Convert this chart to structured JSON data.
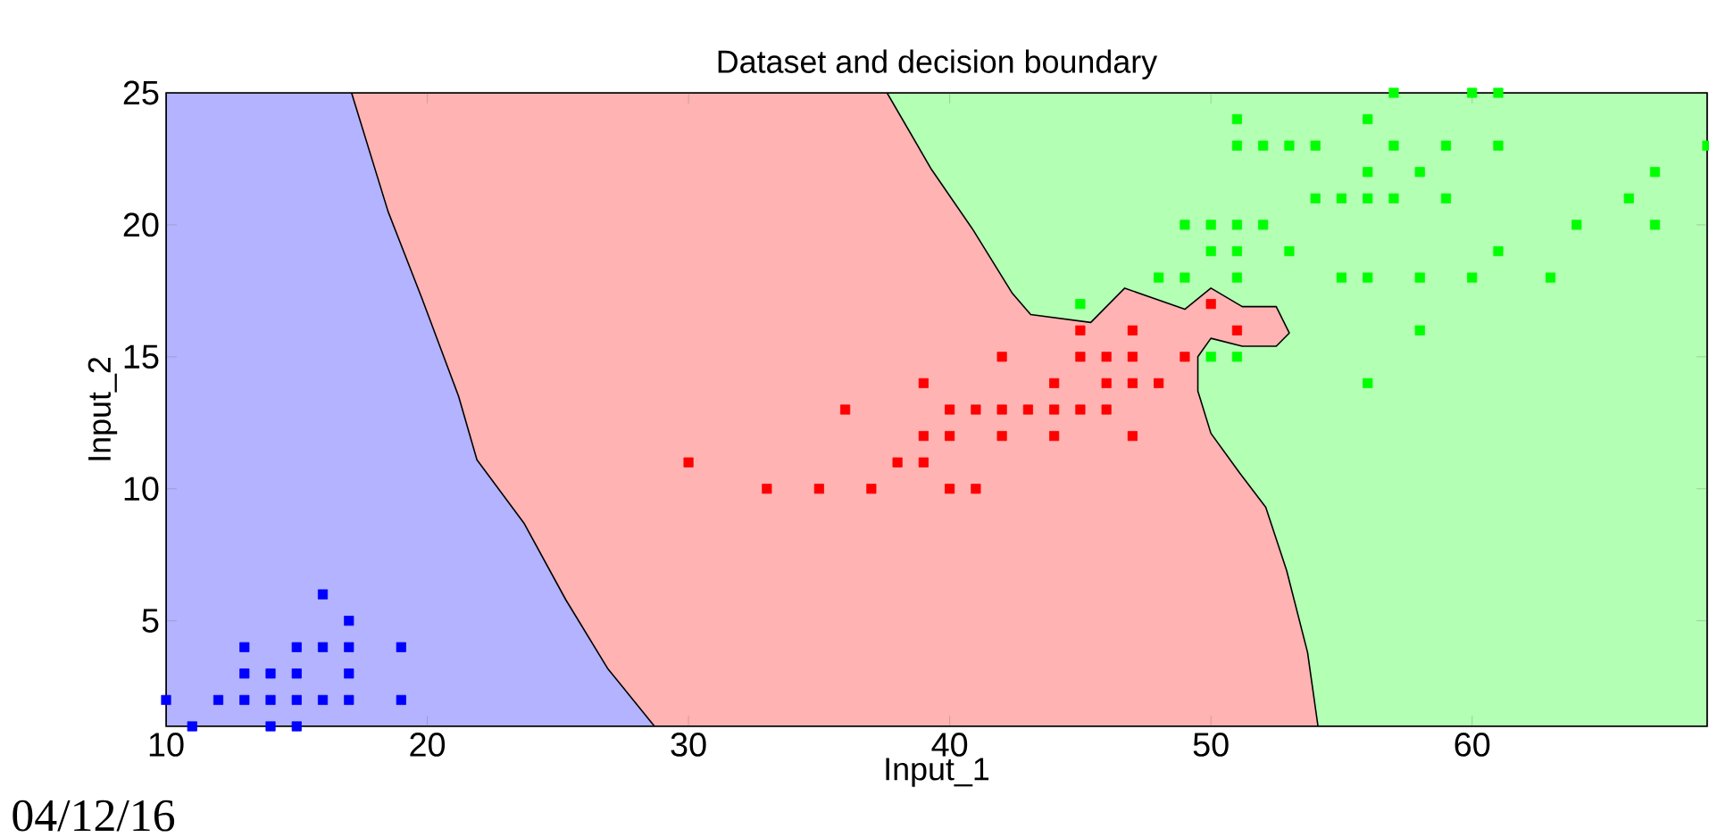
{
  "chart_data": {
    "type": "scatter",
    "title": "Dataset and decision boundary",
    "xlabel": "Input_1",
    "ylabel": "Input_2",
    "xlim": [
      10,
      69
    ],
    "ylim": [
      1,
      25
    ],
    "xticks": [
      10,
      20,
      30,
      40,
      50,
      60
    ],
    "yticks": [
      5,
      10,
      15,
      20,
      25
    ],
    "grid": false,
    "marker": "square",
    "annotations": [
      "04/12/16"
    ],
    "series": [
      {
        "type": "area",
        "marker": "none",
        "color": "#b3ffb3",
        "x": [
          10,
          69
        ],
        "values": [
          25,
          25
        ]
      },
      {
        "type": "area",
        "marker": "none",
        "color": "#ffb3b3",
        "x": [
          10,
          37.6,
          39.3,
          40.9,
          42.4,
          43.1,
          45.4,
          46.7,
          49,
          50,
          51.2,
          52.5,
          53,
          52.5,
          51.2,
          50,
          49.5,
          49.5,
          50,
          51.1,
          52.1,
          52.9,
          53.7,
          54.1
        ],
        "values": [
          25,
          25,
          22.1,
          19.8,
          17.4,
          16.6,
          16.3,
          17.6,
          16.8,
          17.6,
          16.9,
          16.9,
          15.9,
          15.4,
          15.4,
          15.7,
          15,
          13.7,
          12.1,
          10.6,
          9.3,
          6.9,
          3.8,
          1
        ]
      },
      {
        "type": "area",
        "marker": "none",
        "color": "#b3b3ff",
        "x": [
          10,
          17.1,
          18.5,
          19.8,
          21.2,
          21.9,
          23.7,
          25.3,
          26.9,
          28.7
        ],
        "values": [
          25,
          25,
          20.5,
          17.2,
          13.5,
          11.1,
          8.7,
          5.8,
          3.2,
          1
        ]
      },
      {
        "color": "#0000ff",
        "x": [
          16,
          17,
          13,
          15,
          16,
          17,
          19,
          13,
          14,
          15,
          17,
          10,
          12,
          13,
          14,
          15,
          16,
          17,
          19,
          11,
          14,
          15
        ],
        "values": [
          6,
          5,
          4,
          4,
          4,
          4,
          4,
          3,
          3,
          3,
          3,
          2,
          2,
          2,
          2,
          2,
          2,
          2,
          2,
          1,
          1,
          1
        ]
      },
      {
        "color": "#ff0000",
        "x": [
          50,
          45,
          47,
          51,
          42,
          45,
          46,
          47,
          49,
          39,
          44,
          46,
          47,
          48,
          36,
          40,
          41,
          42,
          43,
          44,
          45,
          46,
          39,
          40,
          42,
          44,
          47,
          30,
          38,
          39,
          33,
          35,
          37,
          40,
          41
        ],
        "values": [
          17,
          16,
          16,
          16,
          15,
          15,
          15,
          15,
          15,
          14,
          14,
          14,
          14,
          14,
          13,
          13,
          13,
          13,
          13,
          13,
          13,
          13,
          12,
          12,
          12,
          12,
          12,
          11,
          11,
          11,
          10,
          10,
          10,
          10,
          10
        ]
      },
      {
        "color": "#00ff00",
        "x": [
          57,
          60,
          61,
          51,
          56,
          51,
          52,
          53,
          54,
          57,
          59,
          61,
          69,
          56,
          58,
          67,
          54,
          55,
          56,
          57,
          59,
          66,
          49,
          50,
          51,
          52,
          64,
          67,
          50,
          51,
          53,
          61,
          48,
          49,
          51,
          55,
          56,
          58,
          60,
          63,
          45,
          58,
          50,
          51,
          56
        ],
        "values": [
          25,
          25,
          25,
          24,
          24,
          23,
          23,
          23,
          23,
          23,
          23,
          23,
          23,
          22,
          22,
          22,
          21,
          21,
          21,
          21,
          21,
          21,
          20,
          20,
          20,
          20,
          20,
          20,
          19,
          19,
          19,
          19,
          18,
          18,
          18,
          18,
          18,
          18,
          18,
          18,
          17,
          16,
          15,
          15,
          14
        ]
      }
    ]
  }
}
